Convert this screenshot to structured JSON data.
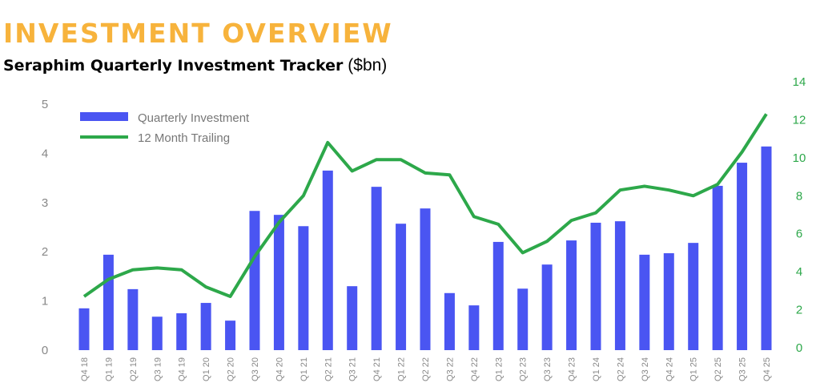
{
  "header": {
    "title": "INVESTMENT OVERVIEW",
    "subtitle": "Seraphim Quarterly Investment Tracker",
    "unit": "($bn)"
  },
  "chart_data": {
    "type": "bar",
    "title": "Seraphim Quarterly Investment Tracker ($bn)",
    "categories": [
      "Q4 18",
      "Q1 19",
      "Q2 19",
      "Q3 19",
      "Q4 19",
      "Q1 20",
      "Q2 20",
      "Q3 20",
      "Q4 20",
      "Q1 21",
      "Q2 21",
      "Q3 21",
      "Q4 21",
      "Q1 22",
      "Q2 22",
      "Q3 22",
      "Q4 22",
      "Q1 23",
      "Q2 23",
      "Q3 23",
      "Q4 23",
      "Q1 24",
      "Q2 24",
      "Q3 24",
      "Q4 24",
      "Q1 25",
      "Q2 25",
      "Q3 25",
      "Q4 25"
    ],
    "series": [
      {
        "name": "Quarterly Investment",
        "type": "bar",
        "axis": "left",
        "color": "#4a55f2",
        "values": [
          0.85,
          1.94,
          1.24,
          0.68,
          0.75,
          0.96,
          0.6,
          2.83,
          2.75,
          2.52,
          3.65,
          1.3,
          3.32,
          2.57,
          2.88,
          1.16,
          0.91,
          2.2,
          1.25,
          1.74,
          2.23,
          2.59,
          2.62,
          1.94,
          1.97,
          2.18,
          3.34,
          3.81,
          4.14
        ]
      },
      {
        "name": "12 Month Trailing",
        "type": "line",
        "axis": "right",
        "color": "#2da84a",
        "values": [
          2.7,
          3.6,
          4.1,
          4.2,
          4.1,
          3.2,
          2.7,
          4.8,
          6.6,
          8.0,
          10.8,
          9.3,
          9.9,
          9.9,
          9.2,
          9.1,
          6.9,
          6.5,
          5.0,
          5.6,
          6.7,
          7.1,
          8.3,
          8.5,
          8.3,
          8.0,
          8.6,
          10.3,
          12.3
        ]
      }
    ],
    "y_left": {
      "range": [
        0,
        5
      ],
      "ticks": [
        "0",
        "1",
        "2",
        "3",
        "4",
        "5"
      ],
      "color": "#888888"
    },
    "y_right": {
      "range": [
        0,
        14
      ],
      "ticks": [
        "0",
        "2",
        "4",
        "6",
        "8",
        "10",
        "12",
        "14"
      ],
      "color": "#2da84a"
    },
    "legend": "top-left",
    "grid": false
  }
}
